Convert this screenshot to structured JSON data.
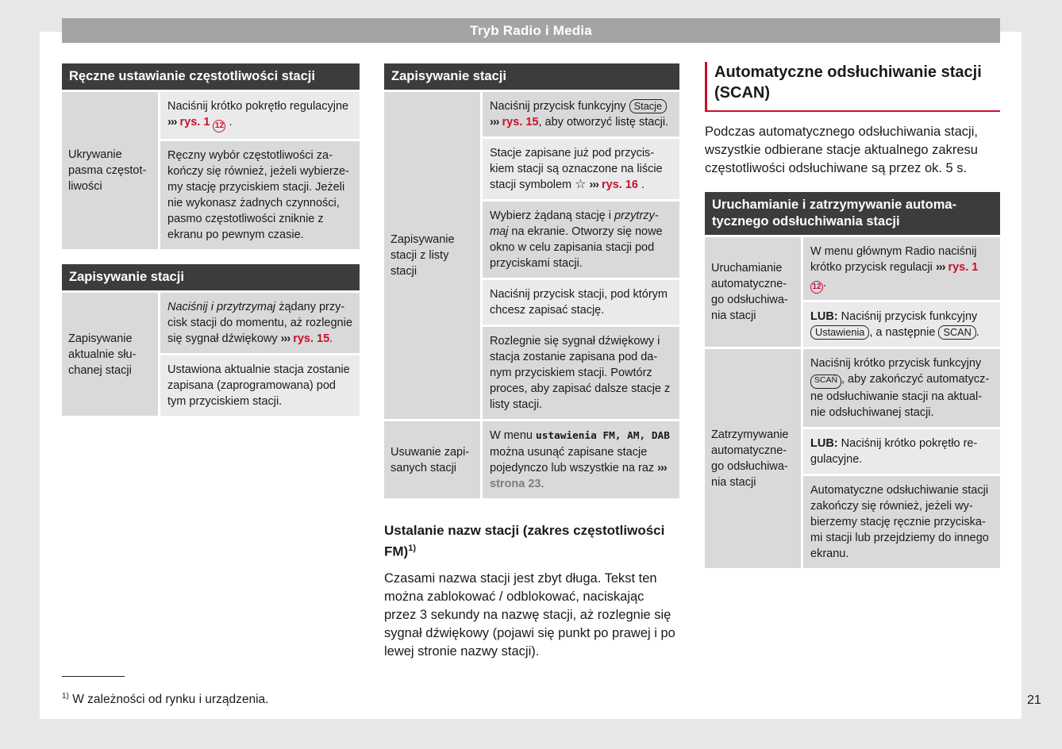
{
  "page": {
    "header_title": "Tryb Radio i Media",
    "page_number": "21",
    "footnote_marker": "1)",
    "footnote_text": " W zależności od rynku i urządzenia."
  },
  "colors": {
    "accent_red": "#c9102e",
    "table_header_bg": "#3c3c3c",
    "cell_dark": "#d9d9d9",
    "cell_light": "#eaeaea",
    "titlebar_bg": "#a4a4a4"
  },
  "sections": {
    "scan": {
      "heading": "Automatyczne odsłuchiwanie sta­cji (SCAN)",
      "body": "Podczas automatycznego odsłuchiwania stacji, wszystkie odbierane stacje aktualne­go zakresu częstotliwości odsłuchiwane są przez ok. 5 s."
    },
    "station_names": {
      "heading": "Ustalanie nazw stacji (zakres częstotli­wości FM)",
      "sup": "1)",
      "body": "Czasami nazwa stacji jest zbyt długa. Tekst ten można zablokować / odblokować, na­ciskając przez 3 sekundy na nazwę stacji, aż rozlegnie się sygnał dźwiękowy (pojawi się punkt po prawej i po lewej stronie na­zwy stacji)."
    }
  },
  "tables": [
    {
      "id": "manual-tuning",
      "title": "Ręczne ustawianie częstotliwości stacji",
      "groups": [
        {
          "label": "Ukrywanie pasma częstot­liwości",
          "cells": [
            {
              "s": "l",
              "segs": [
                {
                  "t": "t",
                  "v": "Naciśnij krótko pokrętło regulacyjne "
                },
                {
                  "t": "arrow",
                  "v": "›››"
                },
                {
                  "t": "t",
                  "v": " "
                },
                {
                  "t": "red",
                  "v": "rys. 1"
                },
                {
                  "t": "t",
                  "v": " "
                },
                {
                  "t": "circ",
                  "v": "12"
                },
                {
                  "t": "t",
                  "v": " ."
                }
              ]
            },
            {
              "s": "d",
              "segs": [
                {
                  "t": "t",
                  "v": "Ręczny wybór częstotliwości za­kończy się również, jeżeli wybierze­my stację przyciskiem stacji. Jeżeli nie wykonasz żadnych czynności, pasmo częstotliwości zniknie z ekranu po pewnym czasie."
                }
              ]
            }
          ]
        }
      ]
    },
    {
      "id": "saving-current-station",
      "title": "Zapisywanie stacji",
      "groups": [
        {
          "label": "Zapisywanie aktualnie słu­chanej stacji",
          "cells": [
            {
              "s": "d",
              "segs": [
                {
                  "t": "i",
                  "v": "Naciśnij i przytrzymaj"
                },
                {
                  "t": "t",
                  "v": " żądany przy­cisk stacji do momentu, aż rozleg­nie się sygnał dźwiękowy "
                },
                {
                  "t": "arrow",
                  "v": "›››"
                },
                {
                  "t": "t",
                  "v": " "
                },
                {
                  "t": "red",
                  "v": "rys. 15"
                },
                {
                  "t": "t",
                  "v": "."
                }
              ]
            },
            {
              "s": "l",
              "segs": [
                {
                  "t": "t",
                  "v": "Ustawiona aktualnie stacja zosta­nie zapisana (zaprogramowana) pod tym przyciskiem stacji."
                }
              ]
            }
          ]
        }
      ]
    },
    {
      "id": "saving-from-station-list",
      "title": "Zapisywanie stacji",
      "groups": [
        {
          "label": "Zapisywanie stacji z listy stacji",
          "cells": [
            {
              "s": "d",
              "segs": [
                {
                  "t": "t",
                  "v": "Naciśnij przycisk funkcyjny "
                },
                {
                  "t": "btn",
                  "v": "Stacje"
                },
                {
                  "t": "t",
                  "v": " "
                },
                {
                  "t": "arrow",
                  "v": "›››"
                },
                {
                  "t": "t",
                  "v": " "
                },
                {
                  "t": "red",
                  "v": "rys. 15"
                },
                {
                  "t": "t",
                  "v": ", aby otworzyć listę stacji."
                }
              ]
            },
            {
              "s": "l",
              "segs": [
                {
                  "t": "t",
                  "v": "Stacje zapisane już pod przycis­kiem stacji są oznaczone na liście stacji symbolem "
                },
                {
                  "t": "star",
                  "v": "☆"
                },
                {
                  "t": "t",
                  "v": " "
                },
                {
                  "t": "arrow",
                  "v": "›››"
                },
                {
                  "t": "t",
                  "v": " "
                },
                {
                  "t": "red",
                  "v": "rys. 16"
                },
                {
                  "t": "t",
                  "v": " ."
                }
              ]
            },
            {
              "s": "d",
              "segs": [
                {
                  "t": "t",
                  "v": "Wybierz żądaną stację i "
                },
                {
                  "t": "i",
                  "v": "przytrzy­maj"
                },
                {
                  "t": "t",
                  "v": " na ekranie. Otworzy się nowe okno w celu zapisania stacji pod przyciskami stacji."
                }
              ]
            },
            {
              "s": "l",
              "segs": [
                {
                  "t": "t",
                  "v": "Naciśnij przycisk stacji, pod którym chcesz zapisać stację."
                }
              ]
            },
            {
              "s": "d",
              "segs": [
                {
                  "t": "t",
                  "v": "Rozlegnie się sygnał dźwiękowy i stacja zostanie zapisana pod da­nym przyciskiem stacji. Powtórz proces, aby zapisać dalsze stacje z listy stacji."
                }
              ]
            }
          ]
        },
        {
          "label": "Usuwanie zapi­sanych stacji",
          "cells": [
            {
              "s": "d",
              "segs": [
                {
                  "t": "t",
                  "v": "W menu "
                },
                {
                  "t": "mono",
                  "v": "ustawienia FM, AM, DAB"
                },
                {
                  "t": "t",
                  "v": " można usunąć zapisane stacje pojedynczo lub wszystkie na raz "
                },
                {
                  "t": "arrow",
                  "v": "›››"
                },
                {
                  "t": "t",
                  "v": " "
                },
                {
                  "t": "ref",
                  "v": "strona 23"
                },
                {
                  "t": "t",
                  "v": "."
                }
              ]
            }
          ]
        }
      ]
    },
    {
      "id": "scan-start-stop",
      "title": "Uruchamianie i zatrzymywanie automa­tycznego odsłuchiwania stacji",
      "groups": [
        {
          "label": "Uruchamianie automatyczne­go odsłuchiwa­nia stacji",
          "cells": [
            {
              "s": "d",
              "segs": [
                {
                  "t": "t",
                  "v": "W menu głównym Radio naciśnij krótko przycisk regulacji "
                },
                {
                  "t": "arrow",
                  "v": "›››"
                },
                {
                  "t": "t",
                  "v": " "
                },
                {
                  "t": "red",
                  "v": "rys. 1"
                },
                {
                  "t": "t",
                  "v": " "
                },
                {
                  "t": "circ",
                  "v": "12"
                },
                {
                  "t": "t",
                  "v": "."
                }
              ]
            },
            {
              "s": "l",
              "segs": [
                {
                  "t": "b",
                  "v": "LUB:"
                },
                {
                  "t": "t",
                  "v": " Naciśnij przycisk funkcyjny "
                },
                {
                  "t": "btn",
                  "v": "Ustawienia"
                },
                {
                  "t": "t",
                  "v": ", a następnie "
                },
                {
                  "t": "btn",
                  "v": "SCAN"
                },
                {
                  "t": "t",
                  "v": "."
                }
              ]
            }
          ]
        },
        {
          "label": "Zatrzymywanie automatyczne­go odsłuchiwa­nia stacji",
          "cells": [
            {
              "s": "d",
              "segs": [
                {
                  "t": "t",
                  "v": "Naciśnij krótko przycisk funkcyjny "
                },
                {
                  "t": "btnsm",
                  "v": "SCAŃ"
                },
                {
                  "t": "t",
                  "v": ", aby zakończyć automatycz­ne odsłuchiwanie stacji na aktual­nie odsłuchiwanej stacji."
                }
              ]
            },
            {
              "s": "l",
              "segs": [
                {
                  "t": "b",
                  "v": "LUB:"
                },
                {
                  "t": "t",
                  "v": " Naciśnij krótko pokrętło re­gulacyjne."
                }
              ]
            },
            {
              "s": "d",
              "segs": [
                {
                  "t": "t",
                  "v": "Automatyczne odsłuchiwanie sta­cji zakończy się również, jeżeli wy­bierzemy stację ręcznie przyciska­mi stacji lub przejdziemy do inne­go ekranu."
                }
              ]
            }
          ]
        }
      ]
    }
  ]
}
